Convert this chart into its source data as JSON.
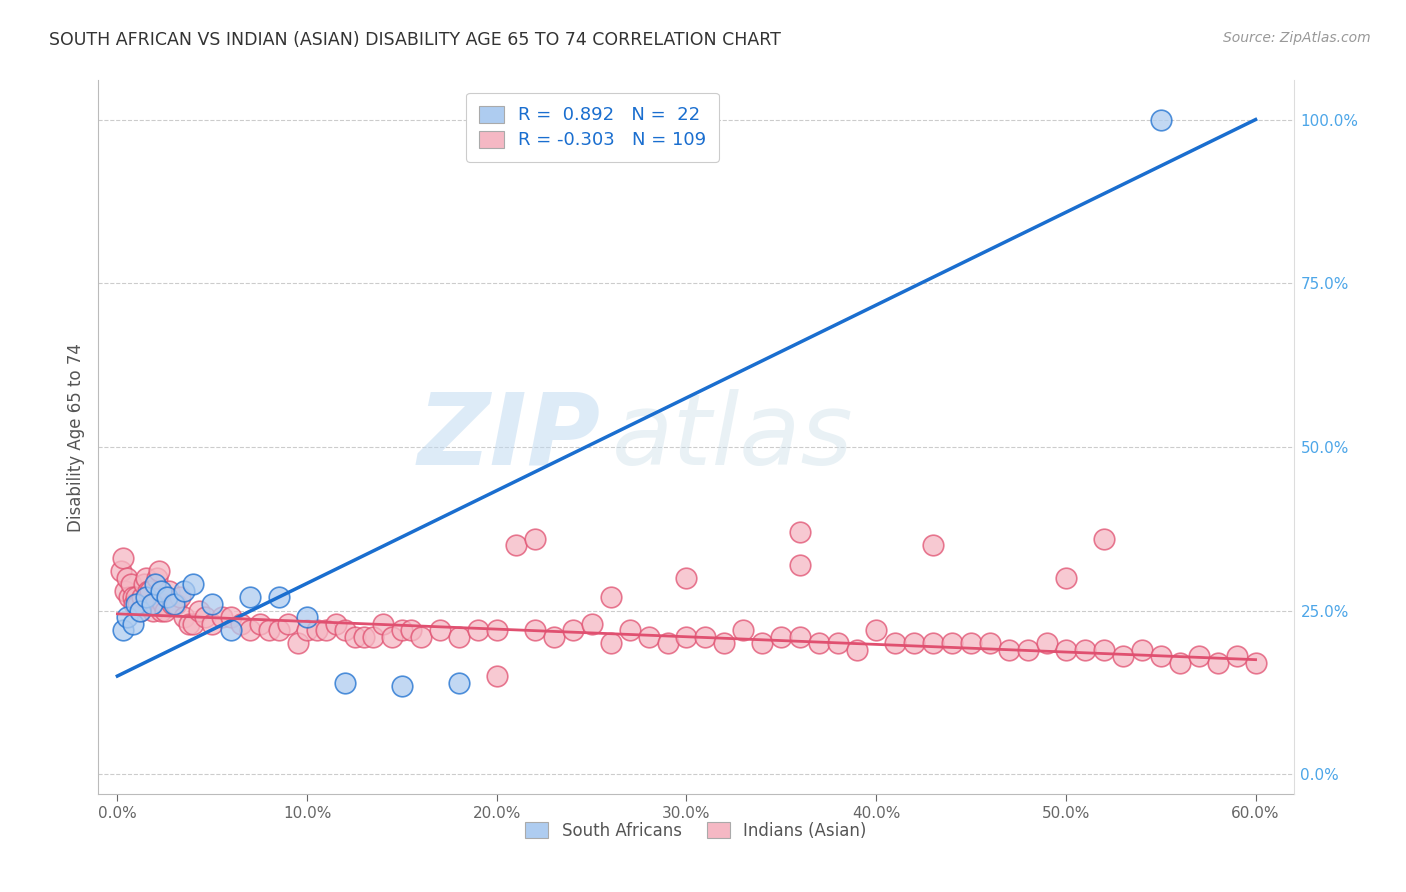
{
  "title": "SOUTH AFRICAN VS INDIAN (ASIAN) DISABILITY AGE 65 TO 74 CORRELATION CHART",
  "source": "Source: ZipAtlas.com",
  "ylabel": "Disability Age 65 to 74",
  "xlabel_vals": [
    0.0,
    10.0,
    20.0,
    30.0,
    40.0,
    50.0,
    60.0
  ],
  "ylabel_vals_right": [
    0.0,
    25.0,
    50.0,
    75.0,
    100.0
  ],
  "xlim": [
    -1.0,
    62.0
  ],
  "ylim": [
    -3.0,
    106.0
  ],
  "blue_R": 0.892,
  "blue_N": 22,
  "pink_R": -0.303,
  "pink_N": 109,
  "blue_color": "#aeccf0",
  "pink_color": "#f5b8c4",
  "blue_line_color": "#1a6ecf",
  "pink_line_color": "#e05070",
  "legend_label_blue": "South Africans",
  "legend_label_pink": "Indians (Asian)",
  "watermark_zip": "ZIP",
  "watermark_atlas": "atlas",
  "blue_scatter_x": [
    0.3,
    0.5,
    0.8,
    1.0,
    1.2,
    1.5,
    1.8,
    2.0,
    2.3,
    2.6,
    3.0,
    3.5,
    4.0,
    5.0,
    6.0,
    7.0,
    8.5,
    10.0,
    12.0,
    15.0,
    18.0,
    55.0
  ],
  "blue_scatter_y": [
    22.0,
    24.0,
    23.0,
    26.0,
    25.0,
    27.0,
    26.0,
    29.0,
    28.0,
    27.0,
    26.0,
    28.0,
    29.0,
    26.0,
    22.0,
    27.0,
    27.0,
    24.0,
    14.0,
    13.5,
    14.0,
    100.0
  ],
  "pink_scatter_x": [
    0.2,
    0.3,
    0.4,
    0.5,
    0.6,
    0.7,
    0.8,
    0.9,
    1.0,
    1.1,
    1.2,
    1.3,
    1.4,
    1.5,
    1.6,
    1.7,
    1.8,
    1.9,
    2.0,
    2.1,
    2.2,
    2.3,
    2.4,
    2.5,
    2.7,
    2.9,
    3.1,
    3.3,
    3.5,
    3.8,
    4.0,
    4.3,
    4.6,
    5.0,
    5.5,
    6.0,
    6.5,
    7.0,
    7.5,
    8.0,
    8.5,
    9.0,
    9.5,
    10.0,
    10.5,
    11.0,
    11.5,
    12.0,
    12.5,
    13.0,
    13.5,
    14.0,
    14.5,
    15.0,
    15.5,
    16.0,
    17.0,
    18.0,
    19.0,
    20.0,
    21.0,
    22.0,
    23.0,
    24.0,
    25.0,
    26.0,
    27.0,
    28.0,
    29.0,
    30.0,
    31.0,
    32.0,
    33.0,
    34.0,
    35.0,
    36.0,
    37.0,
    38.0,
    39.0,
    40.0,
    41.0,
    42.0,
    43.0,
    44.0,
    45.0,
    46.0,
    47.0,
    48.0,
    49.0,
    50.0,
    51.0,
    52.0,
    53.0,
    54.0,
    55.0,
    56.0,
    57.0,
    58.0,
    59.0,
    60.0,
    30.0,
    43.0,
    22.0,
    52.0,
    36.0,
    50.0,
    26.0,
    36.0,
    20.0
  ],
  "pink_scatter_y": [
    31.0,
    33.0,
    28.0,
    30.0,
    27.0,
    29.0,
    27.0,
    26.0,
    27.0,
    26.0,
    25.0,
    27.0,
    29.0,
    30.0,
    28.0,
    28.0,
    26.0,
    25.0,
    26.0,
    30.0,
    31.0,
    25.0,
    26.0,
    25.0,
    28.0,
    26.0,
    26.0,
    27.0,
    24.0,
    23.0,
    23.0,
    25.0,
    24.0,
    23.0,
    24.0,
    24.0,
    23.0,
    22.0,
    23.0,
    22.0,
    22.0,
    23.0,
    20.0,
    22.0,
    22.0,
    22.0,
    23.0,
    22.0,
    21.0,
    21.0,
    21.0,
    23.0,
    21.0,
    22.0,
    22.0,
    21.0,
    22.0,
    21.0,
    22.0,
    22.0,
    35.0,
    22.0,
    21.0,
    22.0,
    23.0,
    20.0,
    22.0,
    21.0,
    20.0,
    21.0,
    21.0,
    20.0,
    22.0,
    20.0,
    21.0,
    21.0,
    20.0,
    20.0,
    19.0,
    22.0,
    20.0,
    20.0,
    20.0,
    20.0,
    20.0,
    20.0,
    19.0,
    19.0,
    20.0,
    19.0,
    19.0,
    19.0,
    18.0,
    19.0,
    18.0,
    17.0,
    18.0,
    17.0,
    18.0,
    17.0,
    30.0,
    35.0,
    36.0,
    36.0,
    32.0,
    30.0,
    27.0,
    37.0,
    15.0
  ],
  "blue_line_x0": 0.0,
  "blue_line_y0": 15.0,
  "blue_line_x1": 60.0,
  "blue_line_y1": 100.0,
  "pink_line_x0": 0.0,
  "pink_line_y0": 24.5,
  "pink_line_x1": 60.0,
  "pink_line_y1": 17.5
}
